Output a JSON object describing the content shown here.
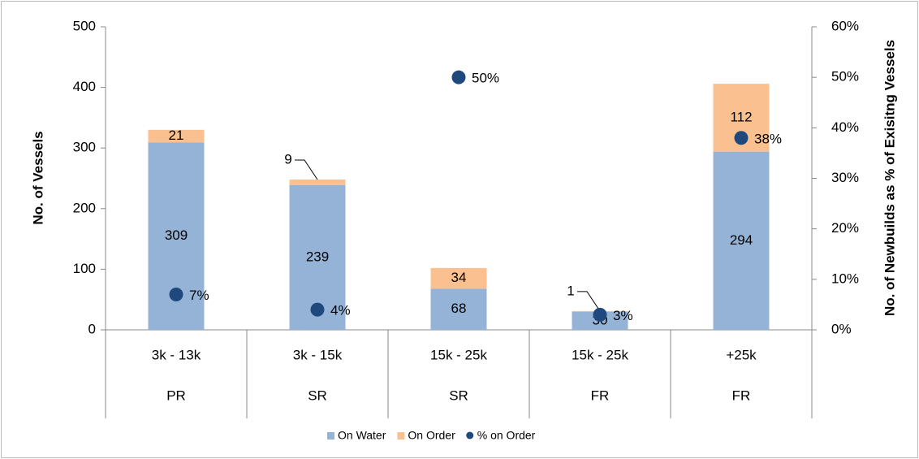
{
  "chart_data": {
    "type": "bar",
    "categories": [
      "3k  - 13k",
      "3k  - 15k",
      "15k - 25k",
      "15k - 25k",
      "+25k"
    ],
    "category_groups": [
      "PR",
      "SR",
      "SR",
      "FR",
      "FR"
    ],
    "ylabel": "No. of Vessels",
    "y2label": "No. of Newbuilds as % of Exisitng Vessels",
    "stacked": true,
    "series": [
      {
        "name": "On Water",
        "color": "#95b3d7",
        "values": [
          309,
          239,
          68,
          30,
          294
        ]
      },
      {
        "name": "On Order",
        "color": "#fac090",
        "values": [
          21,
          9,
          34,
          1,
          112
        ]
      },
      {
        "name": "% on Order",
        "type": "scatter",
        "axis": "y2",
        "color": "#1f497d",
        "values": [
          7,
          4,
          50,
          3,
          38
        ],
        "value_labels": [
          "7%",
          "4%",
          "50%",
          "3%",
          "38%"
        ]
      }
    ],
    "ylim": [
      0,
      500
    ],
    "yticks": [
      0,
      100,
      200,
      300,
      400,
      500
    ],
    "y2lim": [
      0,
      60
    ],
    "y2ticks": [
      {
        "value": 0,
        "label": "0%"
      },
      {
        "value": 10,
        "label": "10%"
      },
      {
        "value": 20,
        "label": "20%"
      },
      {
        "value": 30,
        "label": "30%"
      },
      {
        "value": 40,
        "label": "40%"
      },
      {
        "value": 50,
        "label": "50%"
      },
      {
        "value": 60,
        "label": "60%"
      }
    ],
    "grid": false,
    "legend": "bottom"
  }
}
